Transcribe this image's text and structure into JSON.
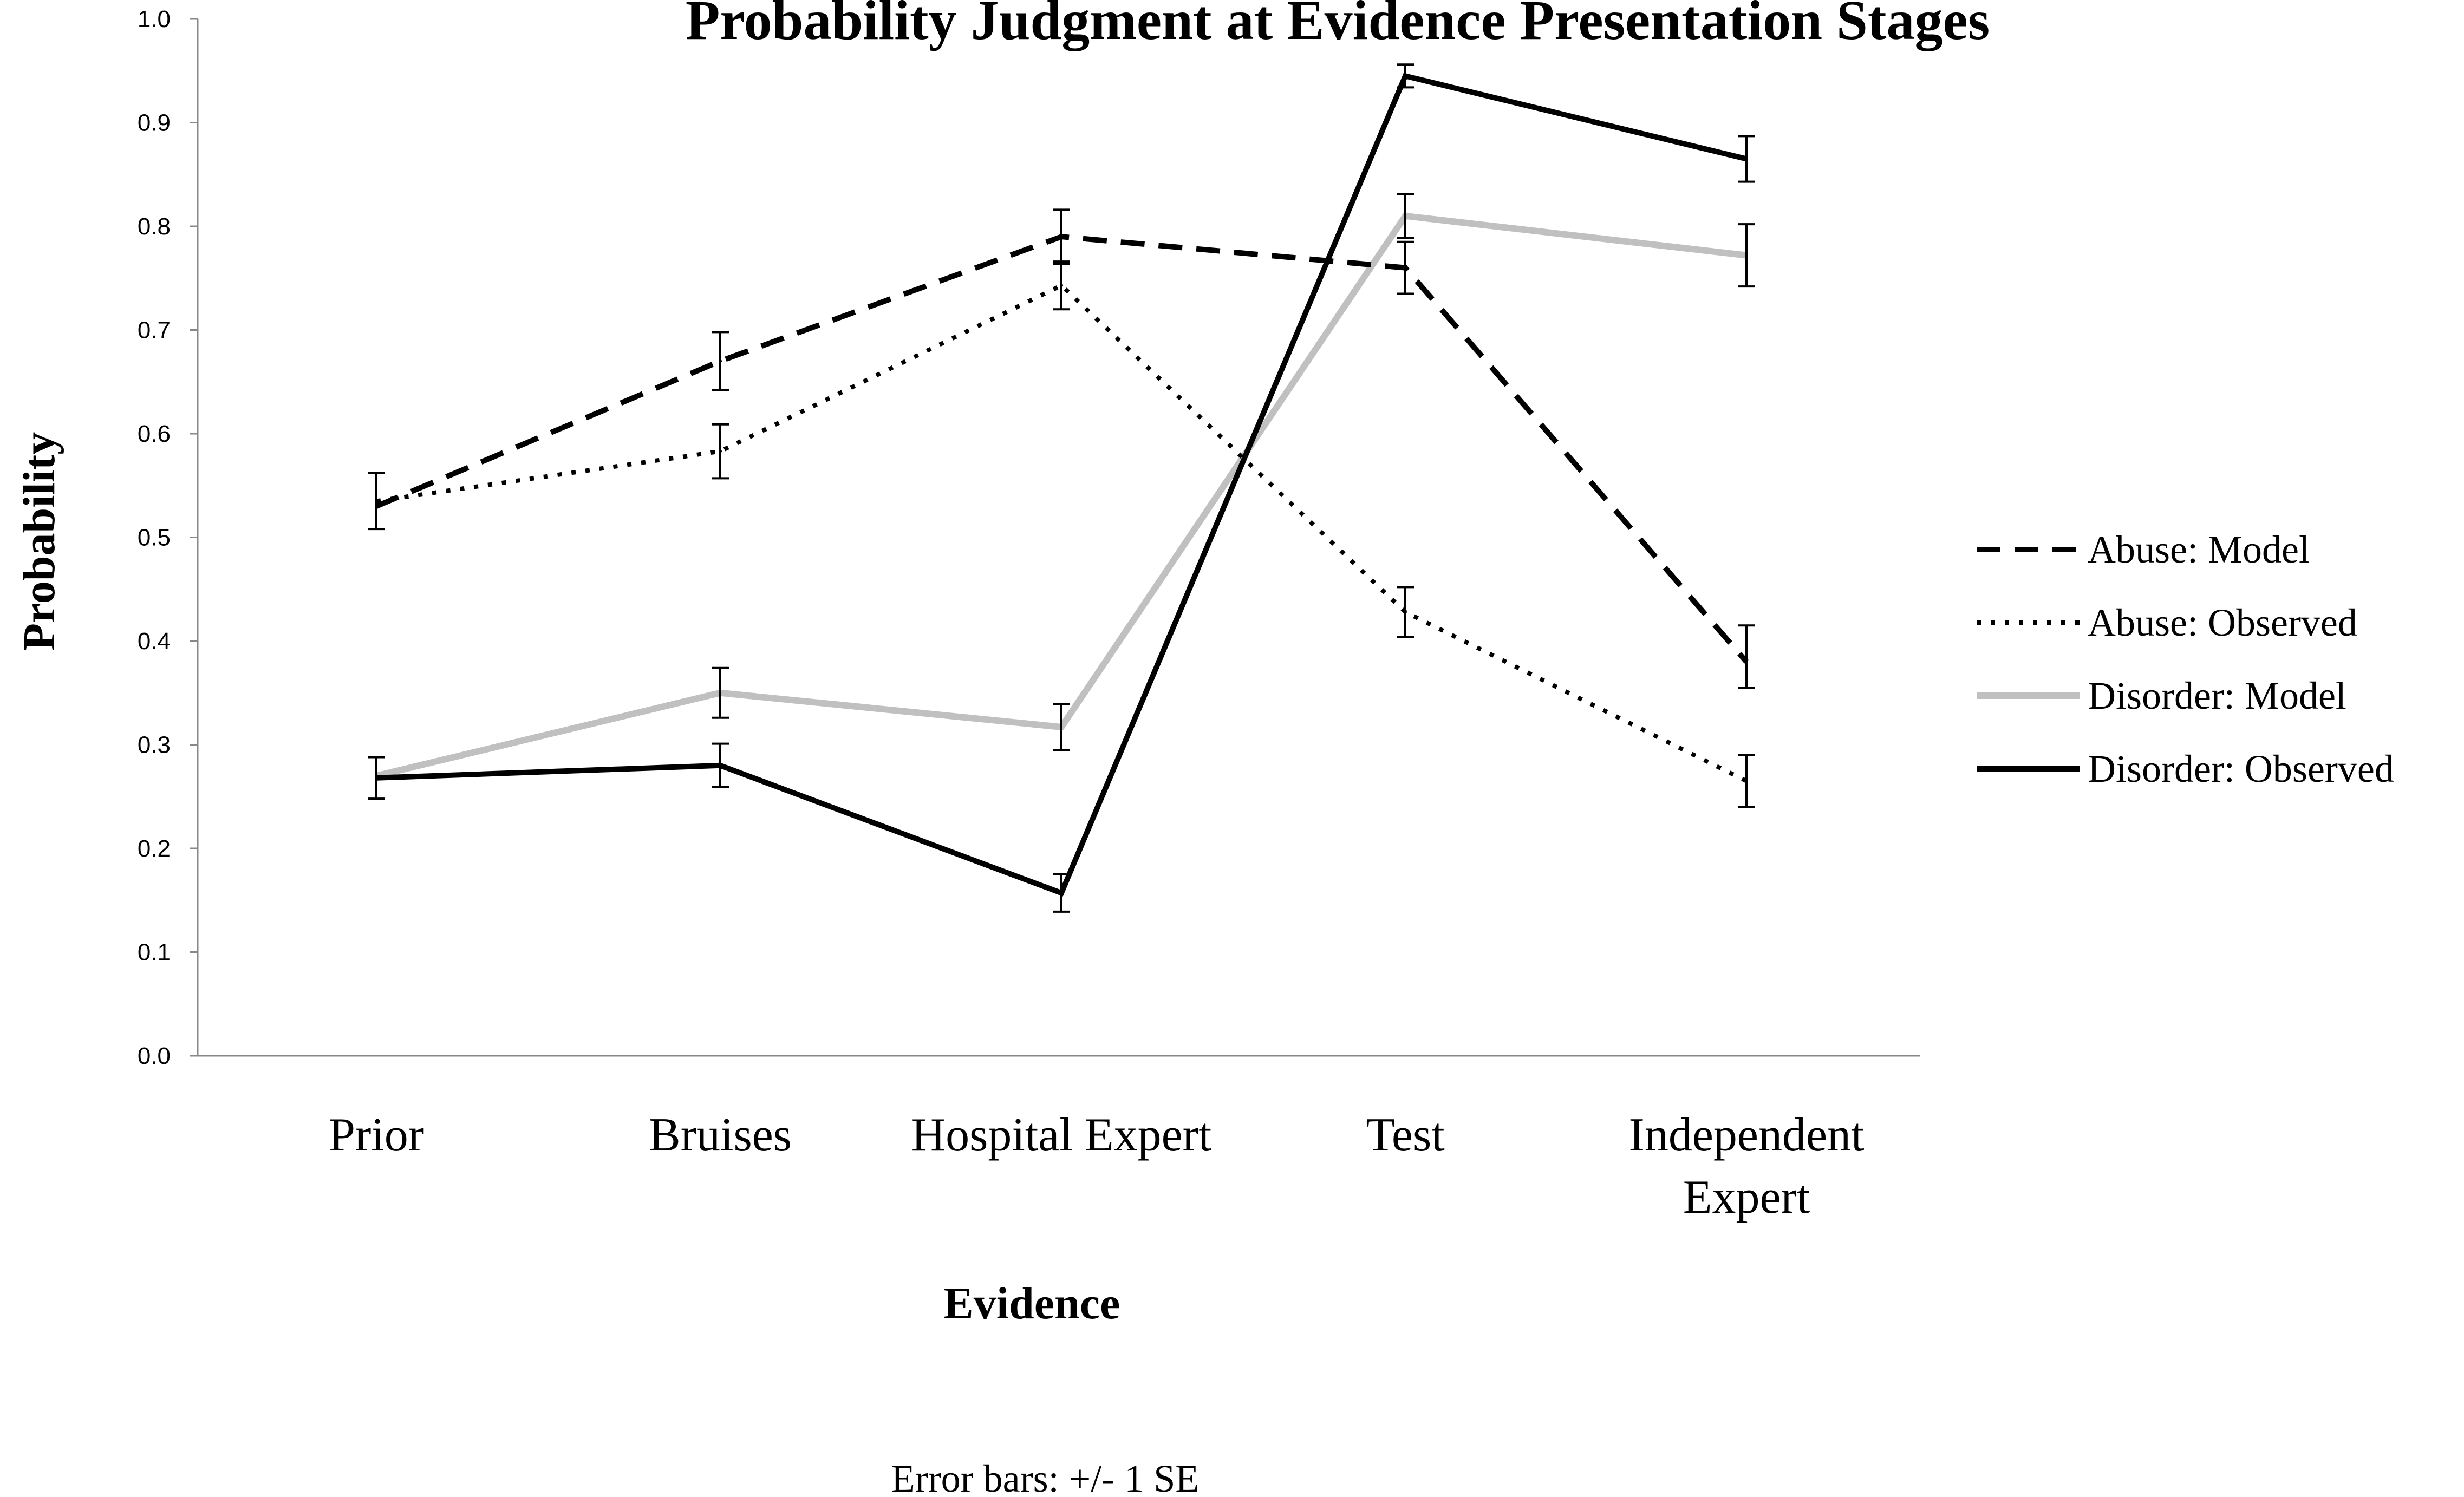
{
  "chart_data": {
    "type": "line",
    "title": "Probability Judgment at Evidence Presentation Stages",
    "xlabel": "Evidence",
    "ylabel": "Probability",
    "categories": [
      [
        "Prior"
      ],
      [
        "Bruises"
      ],
      [
        "Hospital Expert"
      ],
      [
        "Test"
      ],
      [
        "Independent",
        "Expert"
      ]
    ],
    "ylim": [
      0,
      1
    ],
    "yticks": [
      "0.0",
      "0.1",
      "0.2",
      "0.3",
      "0.4",
      "0.5",
      "0.6",
      "0.7",
      "0.8",
      "0.9",
      "1.0"
    ],
    "grid": false,
    "legend_position": "right",
    "note": "Error bars: +/- 1 SE",
    "series": [
      {
        "name": "Abuse: Model",
        "style": "dashed",
        "color": "#000000",
        "values": [
          0.53,
          0.67,
          0.79,
          0.76,
          0.38
        ],
        "error": null
      },
      {
        "name": "Abuse: Observed",
        "style": "dotted",
        "color": "#000000",
        "values": [
          0.535,
          0.583,
          0.743,
          0.428,
          0.265
        ],
        "error": [
          0.027,
          0.026,
          0.023,
          0.024,
          0.025
        ]
      },
      {
        "name": "Disorder: Model",
        "style": "solid",
        "color": "#c0c0c0",
        "values": [
          0.27,
          0.35,
          0.317,
          0.81,
          0.772
        ],
        "error": null
      },
      {
        "name": "Disorder: Observed",
        "style": "solid",
        "color": "#000000",
        "values": [
          0.268,
          0.28,
          0.157,
          0.945,
          0.865
        ],
        "error": [
          0.02,
          0.021,
          0.018,
          0.011,
          0.022
        ]
      }
    ],
    "extra_error_bars": [
      {
        "category_index": 1,
        "value": 0.67,
        "error": 0.028
      },
      {
        "category_index": 2,
        "value": 0.79,
        "error": 0.026
      },
      {
        "category_index": 1,
        "value": 0.35,
        "error": 0.024
      },
      {
        "category_index": 2,
        "value": 0.317,
        "error": 0.022
      },
      {
        "category_index": 3,
        "value": 0.81,
        "error": 0.021
      },
      {
        "category_index": 3,
        "value": 0.76,
        "error": 0.025
      },
      {
        "category_index": 4,
        "value": 0.772,
        "error": 0.03
      },
      {
        "category_index": 4,
        "value": 0.385,
        "error": 0.03
      }
    ]
  }
}
